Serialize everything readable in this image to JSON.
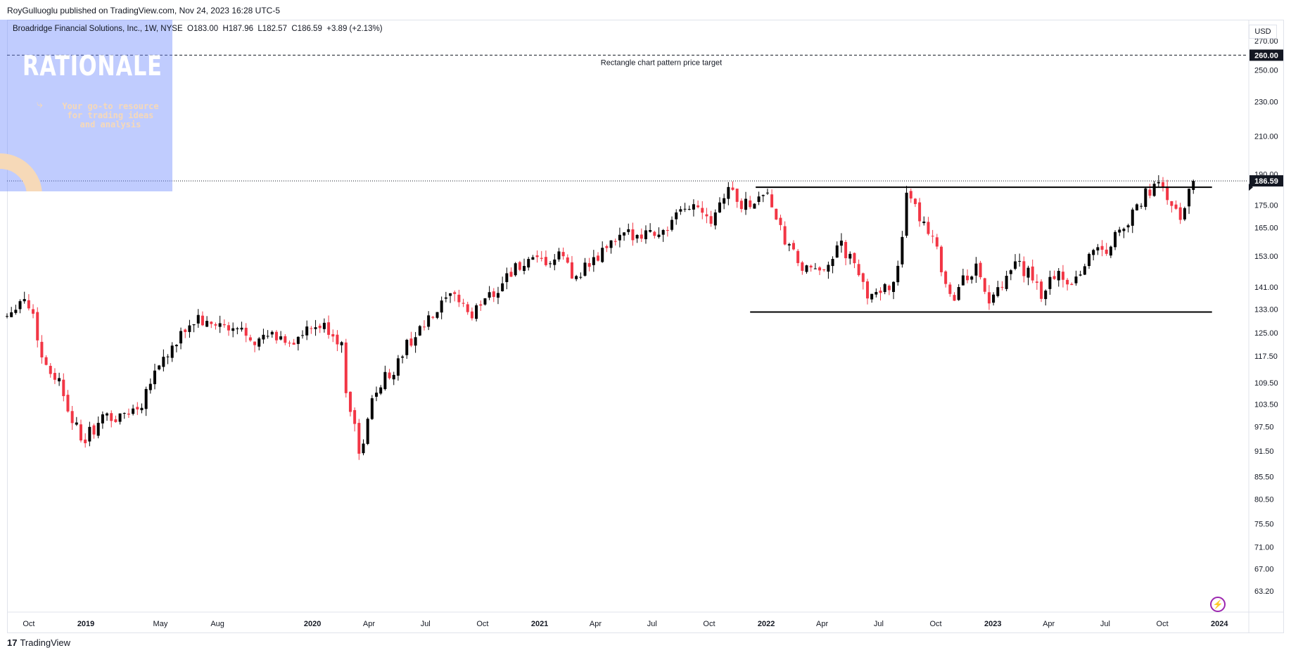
{
  "header": {
    "published": "RoyGulluoglu published on TradingView.com, Nov 24, 2023 16:28 UTC-5",
    "symbol": "Broadridge Financial Solutions, Inc., 1W, NYSE",
    "open": "O183.00",
    "high": "H187.96",
    "low": "L182.57",
    "close": "C186.59",
    "change": "+3.89 (+2.13%)"
  },
  "overlay": {
    "title": "RATIONALE",
    "subtitle": "Your go-to resource for trading ideas and analysis"
  },
  "footer": {
    "logo": "TradingView"
  },
  "colors": {
    "up": "#000000",
    "down": "#f23645",
    "overlay": "#748ffc",
    "accent": "#f6d9b8"
  },
  "chart_data": {
    "type": "candlestick",
    "timeframe": "1W",
    "currency": "USD",
    "yscale": "log",
    "ylim": [
      60,
      285
    ],
    "y_ticks": [
      "270.00",
      "250.00",
      "230.00",
      "210.00",
      "190.00",
      "175.00",
      "165.00",
      "153.00",
      "141.00",
      "133.00",
      "125.00",
      "117.50",
      "109.50",
      "103.50",
      "97.50",
      "91.50",
      "85.50",
      "80.50",
      "75.50",
      "71.00",
      "67.00",
      "63.20"
    ],
    "x_ticks": [
      {
        "label": "Oct",
        "date": "2018-10-01"
      },
      {
        "label": "2019",
        "date": "2019-01-01"
      },
      {
        "label": "May",
        "date": "2019-05-01"
      },
      {
        "label": "Aug",
        "date": "2019-08-01"
      },
      {
        "label": "2020",
        "date": "2020-01-01"
      },
      {
        "label": "Apr",
        "date": "2020-04-01"
      },
      {
        "label": "Jul",
        "date": "2020-07-01"
      },
      {
        "label": "Oct",
        "date": "2020-10-01"
      },
      {
        "label": "2021",
        "date": "2021-01-01"
      },
      {
        "label": "Apr",
        "date": "2021-04-01"
      },
      {
        "label": "Jul",
        "date": "2021-07-01"
      },
      {
        "label": "Oct",
        "date": "2021-10-01"
      },
      {
        "label": "2022",
        "date": "2022-01-01"
      },
      {
        "label": "Apr",
        "date": "2022-04-01"
      },
      {
        "label": "Jul",
        "date": "2022-07-01"
      },
      {
        "label": "Oct",
        "date": "2022-10-01"
      },
      {
        "label": "2023",
        "date": "2023-01-01"
      },
      {
        "label": "Apr",
        "date": "2023-04-01"
      },
      {
        "label": "Jul",
        "date": "2023-07-01"
      },
      {
        "label": "Oct",
        "date": "2023-10-01"
      },
      {
        "label": "2024",
        "date": "2024-01-01"
      }
    ],
    "path_points": [
      [
        "2018-08-27",
        131
      ],
      [
        "2018-09-10",
        135
      ],
      [
        "2018-09-24",
        137
      ],
      [
        "2018-10-08",
        131
      ],
      [
        "2018-10-22",
        117
      ],
      [
        "2018-11-05",
        113
      ],
      [
        "2018-11-19",
        110
      ],
      [
        "2018-12-03",
        103
      ],
      [
        "2018-12-17",
        97
      ],
      [
        "2018-12-24",
        93
      ],
      [
        "2019-01-07",
        96
      ],
      [
        "2019-01-21",
        98
      ],
      [
        "2019-02-04",
        101
      ],
      [
        "2019-02-18",
        99
      ],
      [
        "2019-03-04",
        101
      ],
      [
        "2019-03-18",
        102
      ],
      [
        "2019-04-01",
        104
      ],
      [
        "2019-04-15",
        111
      ],
      [
        "2019-05-06",
        117
      ],
      [
        "2019-05-27",
        121
      ],
      [
        "2019-06-10",
        126
      ],
      [
        "2019-07-01",
        130
      ],
      [
        "2019-07-15",
        127
      ],
      [
        "2019-08-05",
        128
      ],
      [
        "2019-08-19",
        125
      ],
      [
        "2019-09-09",
        126
      ],
      [
        "2019-09-23",
        124
      ],
      [
        "2019-10-07",
        122
      ],
      [
        "2019-10-21",
        124
      ],
      [
        "2019-11-11",
        123
      ],
      [
        "2019-12-02",
        122
      ],
      [
        "2019-12-23",
        125
      ],
      [
        "2020-01-13",
        127
      ],
      [
        "2020-02-03",
        125
      ],
      [
        "2020-02-17",
        120
      ],
      [
        "2020-02-24",
        108
      ],
      [
        "2020-03-09",
        98
      ],
      [
        "2020-03-16",
        90
      ],
      [
        "2020-03-23",
        94
      ],
      [
        "2020-04-06",
        104
      ],
      [
        "2020-04-20",
        110
      ],
      [
        "2020-05-11",
        113
      ],
      [
        "2020-06-01",
        121
      ],
      [
        "2020-06-22",
        126
      ],
      [
        "2020-07-13",
        130
      ],
      [
        "2020-08-03",
        136
      ],
      [
        "2020-08-24",
        137
      ],
      [
        "2020-09-14",
        130
      ],
      [
        "2020-10-05",
        138
      ],
      [
        "2020-10-26",
        140
      ],
      [
        "2020-11-09",
        146
      ],
      [
        "2020-11-23",
        148
      ],
      [
        "2020-12-14",
        150
      ],
      [
        "2021-01-04",
        150
      ],
      [
        "2021-01-25",
        151
      ],
      [
        "2021-02-08",
        154
      ],
      [
        "2021-02-22",
        144
      ],
      [
        "2021-03-15",
        149
      ],
      [
        "2021-03-29",
        150
      ],
      [
        "2021-04-19",
        157
      ],
      [
        "2021-05-10",
        160
      ],
      [
        "2021-06-07",
        163
      ],
      [
        "2021-06-28",
        163
      ],
      [
        "2021-07-19",
        163
      ],
      [
        "2021-08-09",
        169
      ],
      [
        "2021-08-30",
        175
      ],
      [
        "2021-09-20",
        174
      ],
      [
        "2021-10-04",
        169
      ],
      [
        "2021-10-18",
        177
      ],
      [
        "2021-11-01",
        184
      ],
      [
        "2021-11-22",
        175
      ],
      [
        "2021-12-13",
        177
      ],
      [
        "2022-01-03",
        182
      ],
      [
        "2022-01-17",
        167
      ],
      [
        "2022-02-07",
        156
      ],
      [
        "2022-02-28",
        148
      ],
      [
        "2022-03-21",
        146
      ],
      [
        "2022-04-11",
        151
      ],
      [
        "2022-05-02",
        157
      ],
      [
        "2022-05-23",
        149
      ],
      [
        "2022-06-13",
        138
      ],
      [
        "2022-06-27",
        141
      ],
      [
        "2022-07-18",
        139
      ],
      [
        "2022-08-01",
        150
      ],
      [
        "2022-08-15",
        178
      ],
      [
        "2022-09-05",
        170
      ],
      [
        "2022-09-26",
        162
      ],
      [
        "2022-10-17",
        143
      ],
      [
        "2022-10-31",
        136
      ],
      [
        "2022-11-14",
        144
      ],
      [
        "2022-12-05",
        148
      ],
      [
        "2022-12-26",
        136
      ],
      [
        "2023-01-16",
        140
      ],
      [
        "2023-02-06",
        150
      ],
      [
        "2023-02-27",
        146
      ],
      [
        "2023-03-20",
        138
      ],
      [
        "2023-04-10",
        146
      ],
      [
        "2023-05-01",
        143
      ],
      [
        "2023-05-22",
        146
      ],
      [
        "2023-06-12",
        157
      ],
      [
        "2023-07-03",
        155
      ],
      [
        "2023-07-24",
        165
      ],
      [
        "2023-08-14",
        170
      ],
      [
        "2023-09-04",
        180
      ],
      [
        "2023-09-18",
        184
      ],
      [
        "2023-10-02",
        183
      ],
      [
        "2023-10-16",
        175
      ],
      [
        "2023-10-30",
        168
      ],
      [
        "2023-11-13",
        182
      ],
      [
        "2023-11-24",
        186.59
      ]
    ],
    "horizontal_lines": [
      {
        "y": 260,
        "style": "dashed",
        "label": "Rectangle chart pattern price target"
      },
      {
        "y": 183.5,
        "style": "solid",
        "from": "2021-12-15",
        "to": "2023-12-20"
      },
      {
        "y": 132,
        "style": "solid",
        "from": "2021-12-06",
        "to": "2023-12-20"
      }
    ],
    "price_labels": [
      {
        "value": "260.00",
        "y": 260
      },
      {
        "value": "186.59",
        "y": 186.59
      }
    ],
    "last_price": 186.59
  }
}
